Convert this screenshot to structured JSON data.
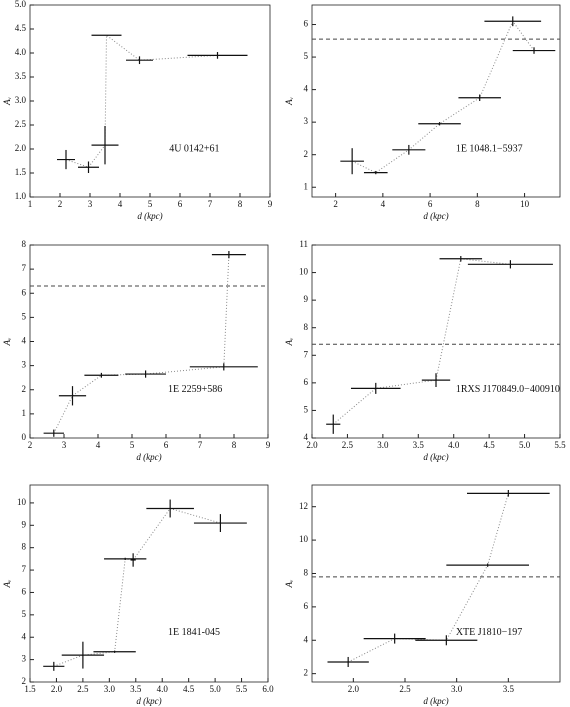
{
  "chart_data": [
    {
      "type": "scatter",
      "annotation": "4U 0142+61",
      "x_label": "d (kpc)",
      "y_label": "Aᵥ",
      "color": "#111111",
      "xlim": [
        1,
        9
      ],
      "xticks": [
        1,
        2,
        3,
        4,
        5,
        6,
        7,
        8,
        9
      ],
      "ylim": [
        1,
        5
      ],
      "yticks": [
        {
          "value": 1,
          "label": "1.0"
        },
        1.5,
        {
          "value": 2,
          "label": "2.0"
        },
        2.5,
        {
          "value": 3,
          "label": "3.0"
        },
        3.5,
        {
          "value": 4,
          "label": "4.0"
        },
        4.5,
        {
          "value": 5,
          "label": "5.0"
        }
      ],
      "x": [
        2.2,
        2.95,
        3.5,
        3.55,
        4.65,
        7.25
      ],
      "xerr": [
        0.3,
        0.35,
        0.45,
        0.5,
        0.45,
        1.0
      ],
      "values": [
        1.78,
        1.62,
        2.08,
        4.37,
        3.85,
        3.95
      ],
      "yerr": [
        0.2,
        0.12,
        0.4,
        0,
        0.08,
        0.07
      ]
    },
    {
      "type": "scatter",
      "annotation": "1E 1048.1−5937",
      "x_label": "d (kpc)",
      "y_label": "Aᵥ",
      "color": "#111111",
      "xlim": [
        1,
        11.5
      ],
      "xticks": [
        2,
        4,
        6,
        8,
        10
      ],
      "ylim": [
        0.7,
        6.6
      ],
      "yticks": [
        1,
        2,
        3,
        4,
        5,
        6
      ],
      "hline": 5.55,
      "x": [
        2.7,
        3.7,
        5.1,
        6.4,
        8.1,
        9.5,
        10.4
      ],
      "xerr": [
        0.5,
        0.5,
        0.7,
        0.9,
        0.9,
        1.2,
        0.9
      ],
      "values": [
        1.8,
        1.45,
        2.15,
        2.95,
        3.75,
        6.1,
        5.2
      ],
      "yerr": [
        0.4,
        0.05,
        0.15,
        0.05,
        0.1,
        0.15,
        0.1
      ]
    },
    {
      "type": "scatter",
      "annotation": "1E 2259+586",
      "x_label": "d (kpc)",
      "y_label": "Aᵥ",
      "color": "#111111",
      "xlim": [
        2,
        9
      ],
      "xticks": [
        2,
        3,
        4,
        5,
        6,
        7,
        8,
        9
      ],
      "ylim": [
        0,
        8
      ],
      "yticks": [
        0,
        1,
        2,
        3,
        4,
        5,
        6,
        7,
        8
      ],
      "hline": 6.3,
      "x": [
        2.7,
        3.25,
        4.1,
        5.4,
        7.7,
        7.85
      ],
      "xerr": [
        0.3,
        0.4,
        0.5,
        0.6,
        1.0,
        0.5
      ],
      "values": [
        0.2,
        1.75,
        2.6,
        2.65,
        2.95,
        7.6
      ],
      "yerr": [
        0.15,
        0.4,
        0.1,
        0.15,
        0.15,
        0.15
      ]
    },
    {
      "type": "scatter",
      "annotation": "1RXS J170849.0−400910",
      "x_label": "d (kpc)",
      "y_label": "Aᵥ",
      "color": "#111111",
      "xlim": [
        2,
        5.5
      ],
      "xticks": [
        {
          "value": 2,
          "label": "2.0"
        },
        2.5,
        {
          "value": 3,
          "label": "3.0"
        },
        3.5,
        {
          "value": 4,
          "label": "4.0"
        },
        4.5,
        {
          "value": 5,
          "label": "5.0"
        },
        5.5
      ],
      "ylim": [
        4,
        11
      ],
      "yticks": [
        4,
        5,
        6,
        7,
        8,
        9,
        10,
        11
      ],
      "hline": 7.4,
      "x": [
        2.3,
        2.9,
        3.75,
        4.1,
        4.8
      ],
      "xerr": [
        0.1,
        0.35,
        0.2,
        0.3,
        0.6
      ],
      "values": [
        4.5,
        5.8,
        6.1,
        10.5,
        10.3
      ],
      "yerr": [
        0.35,
        0.2,
        0.25,
        0.1,
        0.15
      ]
    },
    {
      "type": "scatter",
      "annotation": "1E 1841-045",
      "x_label": "d (kpc)",
      "y_label": "Aᵥ",
      "color": "#111111",
      "xlim": [
        1.5,
        6
      ],
      "xticks": [
        1.5,
        {
          "value": 2,
          "label": "2.0"
        },
        2.5,
        {
          "value": 3,
          "label": "3.0"
        },
        3.5,
        {
          "value": 4,
          "label": "4.0"
        },
        4.5,
        {
          "value": 5,
          "label": "5.0"
        },
        5.5,
        {
          "value": 6,
          "label": "6.0"
        }
      ],
      "ylim": [
        2,
        10.8
      ],
      "yticks": [
        2,
        3,
        4,
        5,
        6,
        7,
        8,
        9,
        10
      ],
      "x": [
        1.95,
        2.5,
        3.1,
        3.3,
        3.45,
        4.15,
        5.1
      ],
      "xerr": [
        0.2,
        0.4,
        0.4,
        0.4,
        0.05,
        0.45,
        0.5
      ],
      "values": [
        2.7,
        3.2,
        3.35,
        7.5,
        7.45,
        9.75,
        9.1
      ],
      "yerr": [
        0.2,
        0.6,
        0.05,
        0.05,
        0.3,
        0.4,
        0.4
      ]
    },
    {
      "type": "scatter",
      "annotation": "XTE J1810−197",
      "x_label": "d (kpc)",
      "y_label": "Aᵥ",
      "color": "#111111",
      "xlim": [
        1.6,
        4
      ],
      "xticks": [
        {
          "value": 2,
          "label": "2.0"
        },
        2.5,
        {
          "value": 3,
          "label": "3.0"
        },
        3.5
      ],
      "ylim": [
        1.5,
        13.3
      ],
      "yticks": [
        2,
        4,
        6,
        8,
        10,
        12
      ],
      "hline": 7.8,
      "x": [
        1.95,
        2.4,
        2.9,
        3.3,
        3.5
      ],
      "xerr": [
        0.2,
        0.3,
        0.3,
        0.4,
        0.4
      ],
      "values": [
        2.7,
        4.1,
        4.0,
        8.5,
        12.8
      ],
      "yerr": [
        0.3,
        0.3,
        0.3,
        0.1,
        0.2
      ]
    }
  ]
}
